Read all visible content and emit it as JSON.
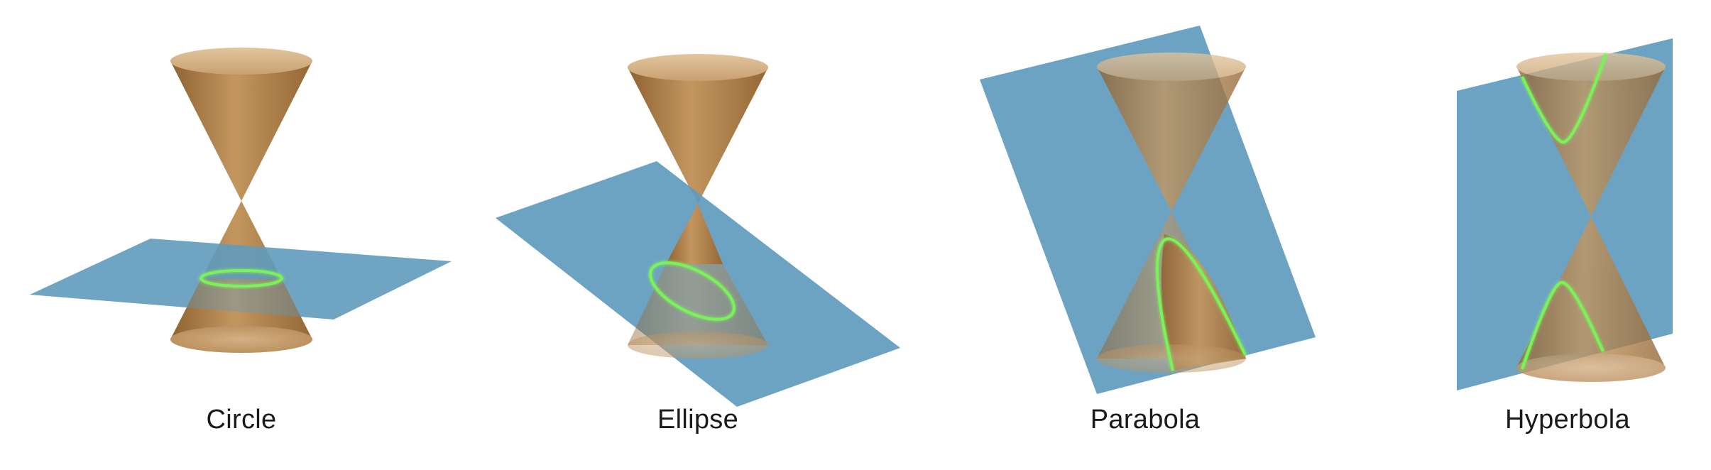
{
  "figure": {
    "panels": [
      {
        "id": "circle",
        "label": "Circle"
      },
      {
        "id": "ellipse",
        "label": "Ellipse"
      },
      {
        "id": "parabola",
        "label": "Parabola"
      },
      {
        "id": "hyperbola",
        "label": "Hyperbola"
      }
    ],
    "colors": {
      "cone": "#b9874f",
      "plane": "#5f9bbd",
      "curve": "#7cf25a"
    }
  }
}
